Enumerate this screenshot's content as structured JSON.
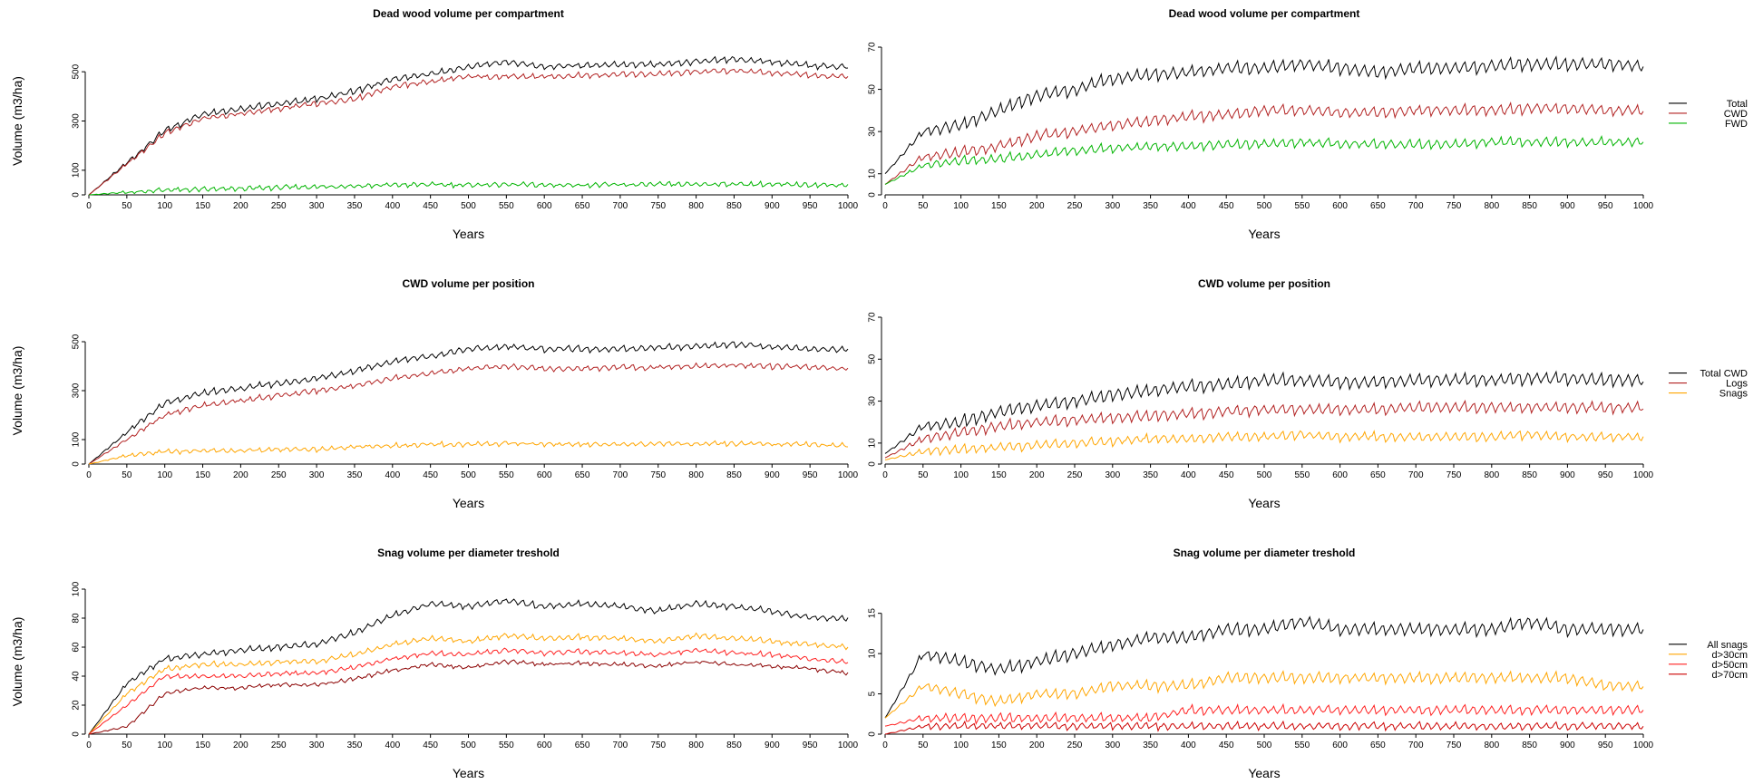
{
  "chart_data": [
    {
      "type": "line",
      "title": "Dead wood volume per compartment",
      "xlabel": "Years",
      "ylabel": "Volume (m3/ha)",
      "xlim": [
        0,
        1000
      ],
      "ylim": [
        0,
        600
      ],
      "x_ticks": [
        0,
        50,
        100,
        150,
        200,
        250,
        300,
        350,
        400,
        450,
        500,
        550,
        600,
        650,
        700,
        750,
        800,
        850,
        900,
        950,
        1000
      ],
      "y_ticks": [
        0,
        100,
        300,
        500
      ],
      "x": [
        0,
        50,
        100,
        150,
        200,
        250,
        300,
        350,
        400,
        450,
        500,
        550,
        600,
        650,
        700,
        750,
        800,
        850,
        900,
        950,
        1000
      ],
      "series": [
        {
          "color": "#000000",
          "values": [
            0,
            130,
            260,
            330,
            350,
            370,
            390,
            420,
            470,
            490,
            520,
            540,
            520,
            525,
            530,
            530,
            540,
            550,
            540,
            525,
            520
          ]
        },
        {
          "color": "#b22222",
          "values": [
            0,
            125,
            250,
            310,
            330,
            350,
            370,
            390,
            440,
            460,
            480,
            480,
            480,
            485,
            490,
            490,
            500,
            505,
            495,
            485,
            480
          ]
        },
        {
          "color": "#00b400",
          "values": [
            0,
            10,
            20,
            22,
            25,
            30,
            33,
            36,
            40,
            42,
            40,
            42,
            40,
            40,
            41,
            42,
            43,
            44,
            42,
            41,
            40
          ]
        }
      ]
    },
    {
      "type": "line",
      "title": "Dead wood volume per compartment",
      "xlabel": "Years",
      "ylabel": "",
      "xlim": [
        0,
        1000
      ],
      "ylim": [
        0,
        70
      ],
      "x_ticks": [
        0,
        50,
        100,
        150,
        200,
        250,
        300,
        350,
        400,
        450,
        500,
        550,
        600,
        650,
        700,
        750,
        800,
        850,
        900,
        950,
        1000
      ],
      "y_ticks": [
        0,
        10,
        30,
        50,
        70
      ],
      "legend": [
        "Total",
        "CWD",
        "FWD"
      ],
      "legend_position": "right",
      "x": [
        0,
        50,
        100,
        150,
        200,
        250,
        300,
        350,
        400,
        450,
        500,
        550,
        600,
        650,
        700,
        750,
        800,
        850,
        900,
        950,
        1000
      ],
      "series": [
        {
          "name": "Total",
          "color": "#000000",
          "values": [
            10,
            30,
            33,
            40,
            47,
            50,
            55,
            57,
            58,
            60,
            60,
            62,
            60,
            58,
            60,
            60,
            61,
            62,
            62,
            62,
            61
          ]
        },
        {
          "name": "CWD",
          "color": "#b22222",
          "values": [
            5,
            18,
            20,
            23,
            28,
            30,
            33,
            35,
            37,
            38,
            40,
            40,
            39,
            39,
            40,
            40,
            40,
            41,
            41,
            40,
            40
          ]
        },
        {
          "name": "FWD",
          "color": "#00b400",
          "values": [
            5,
            14,
            16,
            17,
            19,
            21,
            22,
            23,
            23,
            24,
            24,
            25,
            24,
            24,
            24,
            24,
            25,
            25,
            25,
            25,
            25
          ]
        }
      ]
    },
    {
      "type": "line",
      "title": "CWD volume per position",
      "xlabel": "Years",
      "ylabel": "Volume (m3/ha)",
      "xlim": [
        0,
        1000
      ],
      "ylim": [
        0,
        600
      ],
      "x_ticks": [
        0,
        50,
        100,
        150,
        200,
        250,
        300,
        350,
        400,
        450,
        500,
        550,
        600,
        650,
        700,
        750,
        800,
        850,
        900,
        950,
        1000
      ],
      "y_ticks": [
        0,
        100,
        300,
        500
      ],
      "x": [
        0,
        50,
        100,
        150,
        200,
        250,
        300,
        350,
        400,
        450,
        500,
        550,
        600,
        650,
        700,
        750,
        800,
        850,
        900,
        950,
        1000
      ],
      "series": [
        {
          "color": "#000000",
          "values": [
            0,
            130,
            250,
            290,
            310,
            330,
            350,
            380,
            420,
            440,
            470,
            480,
            470,
            470,
            470,
            475,
            480,
            490,
            480,
            470,
            470
          ]
        },
        {
          "color": "#b22222",
          "values": [
            0,
            100,
            200,
            240,
            260,
            280,
            300,
            320,
            350,
            370,
            390,
            400,
            390,
            390,
            395,
            395,
            400,
            405,
            400,
            395,
            390
          ]
        },
        {
          "color": "#ffa500",
          "values": [
            0,
            35,
            50,
            55,
            55,
            60,
            60,
            70,
            75,
            80,
            80,
            85,
            82,
            80,
            82,
            82,
            82,
            84,
            80,
            80,
            75
          ]
        }
      ]
    },
    {
      "type": "line",
      "title": "CWD volume per position",
      "xlabel": "Years",
      "ylabel": "",
      "xlim": [
        0,
        1000
      ],
      "ylim": [
        0,
        70
      ],
      "x_ticks": [
        0,
        50,
        100,
        150,
        200,
        250,
        300,
        350,
        400,
        450,
        500,
        550,
        600,
        650,
        700,
        750,
        800,
        850,
        900,
        950,
        1000
      ],
      "y_ticks": [
        0,
        10,
        30,
        50,
        70
      ],
      "legend": [
        "Total CWD",
        "Logs",
        "Snags"
      ],
      "legend_position": "right",
      "x": [
        0,
        50,
        100,
        150,
        200,
        250,
        300,
        350,
        400,
        450,
        500,
        550,
        600,
        650,
        700,
        750,
        800,
        850,
        900,
        950,
        1000
      ],
      "series": [
        {
          "name": "Total CWD",
          "color": "#000000",
          "values": [
            5,
            18,
            20,
            25,
            28,
            30,
            33,
            35,
            37,
            38,
            40,
            40,
            39,
            39,
            40,
            40,
            40,
            41,
            41,
            40,
            40
          ]
        },
        {
          "name": "Logs",
          "color": "#b22222",
          "values": [
            3,
            12,
            15,
            18,
            20,
            21,
            22,
            23,
            24,
            25,
            26,
            26,
            26,
            26,
            27,
            27,
            27,
            27,
            27,
            27,
            27
          ]
        },
        {
          "name": "Snags",
          "color": "#ffa500",
          "values": [
            2,
            6,
            7,
            8,
            9,
            10,
            11,
            12,
            12,
            13,
            13,
            14,
            13,
            13,
            13,
            13,
            13,
            14,
            13,
            13,
            13
          ]
        }
      ]
    },
    {
      "type": "line",
      "title": "Snag volume per diameter treshold",
      "xlabel": "Years",
      "ylabel": "Volume (m3/ha)",
      "xlim": [
        0,
        1000
      ],
      "ylim": [
        0,
        100
      ],
      "x_ticks": [
        0,
        50,
        100,
        150,
        200,
        250,
        300,
        350,
        400,
        450,
        500,
        550,
        600,
        650,
        700,
        750,
        800,
        850,
        900,
        950,
        1000
      ],
      "y_ticks": [
        0,
        20,
        40,
        60,
        80,
        100
      ],
      "x": [
        0,
        50,
        100,
        150,
        200,
        250,
        300,
        350,
        400,
        450,
        500,
        550,
        600,
        650,
        700,
        750,
        800,
        850,
        900,
        950,
        1000
      ],
      "series": [
        {
          "color": "#000000",
          "values": [
            0,
            35,
            52,
            55,
            58,
            60,
            62,
            70,
            82,
            90,
            88,
            92,
            88,
            90,
            88,
            85,
            90,
            88,
            85,
            80,
            80
          ]
        },
        {
          "color": "#ffa500",
          "values": [
            0,
            28,
            45,
            48,
            48,
            50,
            50,
            55,
            62,
            66,
            64,
            68,
            66,
            67,
            66,
            64,
            68,
            66,
            64,
            62,
            60
          ]
        },
        {
          "color": "#ff2020",
          "values": [
            0,
            20,
            40,
            40,
            40,
            42,
            42,
            46,
            52,
            56,
            55,
            58,
            56,
            57,
            56,
            55,
            58,
            56,
            55,
            52,
            50
          ]
        },
        {
          "color": "#8b0000",
          "values": [
            0,
            5,
            28,
            32,
            32,
            34,
            34,
            38,
            44,
            48,
            46,
            50,
            48,
            49,
            48,
            47,
            50,
            48,
            47,
            45,
            42
          ]
        }
      ]
    },
    {
      "type": "line",
      "title": "Snag volume per diameter treshold",
      "xlabel": "Years",
      "ylabel": "",
      "xlim": [
        0,
        1000
      ],
      "ylim": [
        0,
        18
      ],
      "x_ticks": [
        0,
        50,
        100,
        150,
        200,
        250,
        300,
        350,
        400,
        450,
        500,
        550,
        600,
        650,
        700,
        750,
        800,
        850,
        900,
        950,
        1000
      ],
      "y_ticks": [
        0,
        5,
        10,
        15
      ],
      "legend": [
        "All snags",
        "d>30cm",
        "d>50cm",
        "d>70cm"
      ],
      "legend_position": "right",
      "x": [
        0,
        50,
        100,
        150,
        200,
        250,
        300,
        350,
        400,
        450,
        500,
        550,
        600,
        650,
        700,
        750,
        800,
        850,
        900,
        950,
        1000
      ],
      "series": [
        {
          "name": "All snags",
          "color": "#000000",
          "values": [
            2,
            10,
            9,
            8,
            9,
            10,
            11,
            12,
            12,
            13,
            13,
            14,
            13,
            13,
            13,
            13,
            13,
            14,
            13,
            13,
            13
          ]
        },
        {
          "name": "d>30cm",
          "color": "#ffa500",
          "values": [
            2,
            6,
            5,
            4,
            5,
            5,
            6,
            6,
            6,
            7,
            7,
            7,
            7,
            7,
            7,
            7,
            7,
            7,
            7,
            6,
            6
          ]
        },
        {
          "name": "d>50cm",
          "color": "#ff2020",
          "values": [
            1,
            2,
            2,
            2,
            2,
            2,
            2,
            2,
            3,
            3,
            3,
            3,
            3,
            3,
            3,
            3,
            3,
            3,
            3,
            3,
            3
          ]
        },
        {
          "name": "d>70cm",
          "color": "#cc0000",
          "values": [
            0,
            1,
            1,
            1,
            1,
            1,
            1,
            1,
            1,
            1,
            1,
            1,
            1,
            1,
            1,
            1,
            1,
            1,
            1,
            1,
            1
          ]
        }
      ]
    }
  ]
}
